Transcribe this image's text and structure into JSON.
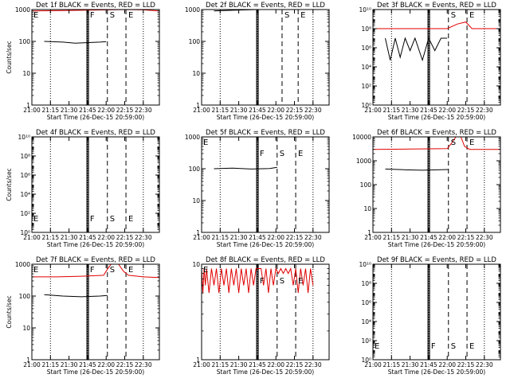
{
  "colors": {
    "events": "#000000",
    "lld": "#e00000",
    "background": "#ffffff"
  },
  "xaxis": {
    "label": "Start Time (26-Dec-15 20:59:00)",
    "ticks": [
      "21:00",
      "21:15",
      "21:30",
      "21:45",
      "22:00",
      "22:15",
      "22:30"
    ],
    "tick_minutes": [
      0,
      15,
      30,
      45,
      60,
      75,
      90
    ],
    "range_minutes": [
      0,
      103
    ]
  },
  "markers": {
    "E_label": "E",
    "F_label": "F",
    "S_label": "S"
  },
  "chart_data": [
    {
      "type": "line",
      "title": "Det 1f BLACK = Events, RED = LLD",
      "ylabel": "Counts/sec",
      "ylim": [
        1,
        1000
      ],
      "yscale": "log",
      "yticks": [
        "1",
        "10",
        "100",
        "1000"
      ],
      "ytick_values": [
        1,
        10,
        100,
        1000
      ],
      "dotted_minutes": [
        15,
        45,
        90
      ],
      "solid_minutes": [
        44.5,
        45.7
      ],
      "dashed_minutes": [
        61,
        76
      ],
      "marker_positions": {
        "E": 0,
        "F": 45,
        "S": 61,
        "E2": 76
      },
      "series": [
        {
          "color": "red",
          "points": [
            [
              0,
              900
            ],
            [
              20,
              920
            ],
            [
              40,
              950
            ],
            [
              62,
              980
            ],
            [
              75,
              1000
            ],
            [
              90,
              980
            ],
            [
              103,
              900
            ]
          ]
        },
        {
          "color": "black",
          "points": [
            [
              10,
              100
            ],
            [
              25,
              95
            ],
            [
              35,
              88
            ],
            [
              55,
              95
            ],
            [
              60,
              98
            ]
          ]
        }
      ]
    },
    {
      "type": "line",
      "title": "Det 2f BLACK = Events, RED = LLD",
      "ylabel": "",
      "ylim": [
        1,
        1000
      ],
      "yscale": "log",
      "yticks": [
        "1",
        "10",
        "100",
        "1000"
      ],
      "ytick_values": [
        1,
        10,
        100,
        1000
      ],
      "dotted_minutes": [
        15,
        45,
        90
      ],
      "solid_minutes": [
        44.5,
        45.7
      ],
      "dashed_minutes": [
        65,
        78
      ],
      "marker_positions": {
        "S": 65,
        "E": 78
      },
      "series": [
        {
          "color": "red",
          "points": [
            [
              0,
              2000
            ],
            [
              20,
              2100
            ],
            [
              40,
              2300
            ],
            [
              60,
              2500
            ],
            [
              62,
              4000
            ],
            [
              66,
              20000
            ],
            [
              70,
              20000
            ],
            [
              74,
              3000
            ],
            [
              78,
              2000
            ],
            [
              103,
              2000
            ]
          ]
        },
        {
          "color": "black",
          "points": [
            [
              10,
              900
            ],
            [
              25,
              950
            ],
            [
              45,
              1000
            ],
            [
              60,
              1050
            ]
          ]
        }
      ]
    },
    {
      "type": "line",
      "title": "Det 3f BLACK = Events, RED = LLD",
      "ylabel": "",
      "ylim": [
        1,
        10000000000
      ],
      "yscale": "log",
      "yticks": [
        "10⁰",
        "10²",
        "10⁴",
        "10⁶",
        "10⁸",
        "10¹⁰"
      ],
      "ytick_values": [
        1,
        100,
        10000,
        1000000,
        100000000,
        10000000000
      ],
      "dotted_minutes": [
        15,
        45,
        90
      ],
      "solid_minutes": [
        44.5,
        45.7
      ],
      "dashed_minutes": [
        61,
        76
      ],
      "marker_positions": {
        "S": 61,
        "E": 76
      },
      "series": [
        {
          "color": "red",
          "points": [
            [
              0,
              100000000
            ],
            [
              30,
              100000000
            ],
            [
              60,
              100000000
            ],
            [
              68,
              300000000
            ],
            [
              75,
              500000000
            ],
            [
              80,
              100000000
            ],
            [
              103,
              100000000
            ]
          ]
        },
        {
          "color": "black",
          "points": [
            [
              10,
              10000000
            ],
            [
              14,
              50000
            ],
            [
              18,
              10000000
            ],
            [
              22,
              100000
            ],
            [
              26,
              10000000
            ],
            [
              30,
              500000
            ],
            [
              34,
              10000000
            ],
            [
              40,
              50000
            ],
            [
              45,
              10000000
            ],
            [
              50,
              500000
            ],
            [
              55,
              10000000
            ],
            [
              60,
              10000000
            ]
          ]
        }
      ]
    },
    {
      "type": "line",
      "title": "Det 4f BLACK = Events, RED = LLD",
      "ylabel": "Counts/sec",
      "ylim": [
        1,
        10000000000
      ],
      "yscale": "log",
      "yticks": [
        "10⁰",
        "10²",
        "10⁴",
        "10⁶",
        "10⁸",
        "10¹⁰"
      ],
      "ytick_values": [
        1,
        100,
        10000,
        1000000,
        100000000,
        10000000000
      ],
      "dotted_minutes": [
        15,
        45,
        90
      ],
      "solid_minutes": [
        44.5,
        45.7
      ],
      "dashed_minutes": [
        61,
        76
      ],
      "marker_positions": {
        "E": 0,
        "F": 45,
        "S": 61,
        "E2": 76
      },
      "series": []
    },
    {
      "type": "line",
      "title": "Det 5f BLACK = Events, RED = LLD",
      "ylabel": "",
      "ylim": [
        1,
        1000
      ],
      "yscale": "log",
      "yticks": [
        "1",
        "10",
        "100",
        "1000"
      ],
      "ytick_values": [
        1,
        10,
        100,
        1000
      ],
      "dotted_minutes": [
        15,
        45,
        90
      ],
      "solid_minutes": [
        44.5,
        45.7
      ],
      "dashed_minutes": [
        61,
        76
      ],
      "marker_positions": {
        "E": 0,
        "F": 45,
        "S": 61,
        "E2": 76
      },
      "series": [
        {
          "color": "black",
          "points": [
            [
              10,
              100
            ],
            [
              25,
              105
            ],
            [
              40,
              98
            ],
            [
              55,
              102
            ],
            [
              61,
              110
            ]
          ]
        }
      ]
    },
    {
      "type": "line",
      "title": "Det 6f BLACK = Events, RED = LLD",
      "ylabel": "",
      "ylim": [
        1,
        10000
      ],
      "yscale": "log",
      "yticks": [
        "1",
        "10",
        "100",
        "1000",
        "10000"
      ],
      "ytick_values": [
        1,
        10,
        100,
        1000,
        10000
      ],
      "dotted_minutes": [
        15,
        45,
        90
      ],
      "solid_minutes": [
        44.5,
        45.7
      ],
      "dashed_minutes": [
        61,
        76
      ],
      "marker_positions": {
        "S": 61,
        "E": 76
      },
      "series": [
        {
          "color": "red",
          "points": [
            [
              0,
              3000
            ],
            [
              30,
              3100
            ],
            [
              60,
              3200
            ],
            [
              63,
              5000
            ],
            [
              67,
              20000
            ],
            [
              71,
              20000
            ],
            [
              74,
              4000
            ],
            [
              78,
              3000
            ],
            [
              103,
              3000
            ]
          ]
        },
        {
          "color": "black",
          "points": [
            [
              10,
              450
            ],
            [
              25,
              420
            ],
            [
              40,
              400
            ],
            [
              55,
              420
            ],
            [
              61,
              430
            ]
          ]
        }
      ]
    },
    {
      "type": "line",
      "title": "Det 7f BLACK = Events, RED = LLD",
      "ylabel": "Counts/sec",
      "ylim": [
        1,
        1000
      ],
      "yscale": "log",
      "yticks": [
        "1",
        "10",
        "100",
        "1000"
      ],
      "ytick_values": [
        1,
        10,
        100,
        1000
      ],
      "dotted_minutes": [
        15,
        45,
        90
      ],
      "solid_minutes": [
        44.5,
        45.7
      ],
      "dashed_minutes": [
        61,
        76
      ],
      "marker_positions": {
        "E": 0,
        "F": 45,
        "S": 61,
        "E2": 76
      },
      "series": [
        {
          "color": "red",
          "points": [
            [
              0,
              400
            ],
            [
              20,
              400
            ],
            [
              40,
              420
            ],
            [
              58,
              450
            ],
            [
              61,
              700
            ],
            [
              64,
              1200
            ],
            [
              70,
              1000
            ],
            [
              74,
              600
            ],
            [
              78,
              450
            ],
            [
              90,
              400
            ],
            [
              103,
              380
            ]
          ]
        },
        {
          "color": "black",
          "points": [
            [
              10,
              110
            ],
            [
              25,
              100
            ],
            [
              40,
              95
            ],
            [
              55,
              100
            ],
            [
              61,
              105
            ]
          ]
        }
      ]
    },
    {
      "type": "line",
      "title": "Det 8f BLACK = Events, RED = LLD",
      "ylabel": "",
      "ylim": [
        1,
        10
      ],
      "yscale": "log",
      "yticks": [
        "1",
        "10"
      ],
      "ytick_values": [
        1,
        10
      ],
      "dotted_minutes": [
        15,
        45,
        90
      ],
      "solid_minutes": [
        44.5,
        45.7
      ],
      "dashed_minutes": [
        61,
        76
      ],
      "marker_positions": {
        "E": 0,
        "F": 45,
        "S": 61,
        "E2": 76
      },
      "series": [
        {
          "color": "red",
          "points": [
            [
              0,
              9
            ],
            [
              1,
              5
            ],
            [
              2,
              9
            ],
            [
              3,
              6
            ],
            [
              4,
              9
            ],
            [
              6,
              5
            ],
            [
              8,
              9
            ],
            [
              10,
              6
            ],
            [
              12,
              9
            ],
            [
              14,
              5
            ],
            [
              16,
              9
            ],
            [
              18,
              6
            ],
            [
              20,
              9
            ],
            [
              22,
              5
            ],
            [
              24,
              9
            ],
            [
              26,
              6
            ],
            [
              28,
              9
            ],
            [
              30,
              5
            ],
            [
              32,
              9
            ],
            [
              34,
              6
            ],
            [
              36,
              9
            ],
            [
              38,
              5
            ],
            [
              40,
              9
            ],
            [
              42,
              6
            ],
            [
              44,
              9
            ],
            [
              48,
              9
            ],
            [
              50,
              6
            ],
            [
              52,
              9
            ],
            [
              54,
              5
            ],
            [
              56,
              9
            ],
            [
              58,
              6
            ],
            [
              60,
              9
            ],
            [
              62,
              8
            ],
            [
              64,
              9
            ],
            [
              66,
              8
            ],
            [
              68,
              9
            ],
            [
              70,
              8
            ],
            [
              72,
              9
            ],
            [
              74,
              6
            ],
            [
              76,
              9
            ],
            [
              78,
              5
            ],
            [
              80,
              9
            ],
            [
              82,
              6
            ],
            [
              84,
              9
            ],
            [
              86,
              5
            ],
            [
              88,
              9
            ],
            [
              90,
              6
            ]
          ]
        }
      ]
    },
    {
      "type": "line",
      "title": "Det 9f BLACK = Events, RED = LLD",
      "ylabel": "",
      "ylim": [
        1,
        10000000000
      ],
      "yscale": "log",
      "yticks": [
        "10⁰",
        "10²",
        "10⁴",
        "10⁶",
        "10⁸",
        "10¹⁰"
      ],
      "ytick_values": [
        1,
        100,
        10000,
        1000000,
        100000000,
        10000000000
      ],
      "dotted_minutes": [
        15,
        45,
        90
      ],
      "solid_minutes": [
        44.5,
        45.7
      ],
      "dashed_minutes": [
        61,
        76
      ],
      "marker_positions": {
        "E": 0,
        "F": 45,
        "S": 61,
        "E2": 76
      },
      "series": []
    }
  ]
}
